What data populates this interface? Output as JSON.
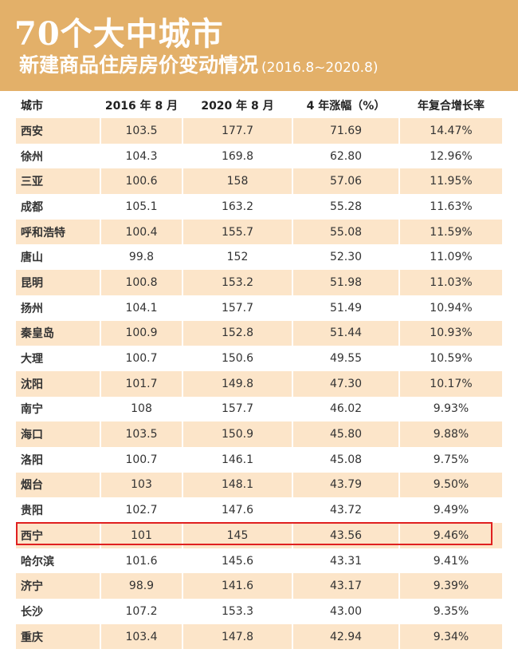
{
  "header": {
    "title": "70个大中城市",
    "subtitle": "新建商品住房房价变动情况",
    "range": "(2016.8~2020.8)"
  },
  "table": {
    "columns": [
      "城市",
      "2016 年 8 月",
      "2020 年 8 月",
      "4 年涨幅（%）",
      "年复合增长率"
    ],
    "rows": [
      [
        "西安",
        "103.5",
        "177.7",
        "71.69",
        "14.47%"
      ],
      [
        "徐州",
        "104.3",
        "169.8",
        "62.80",
        "12.96%"
      ],
      [
        "三亚",
        "100.6",
        "158",
        "57.06",
        "11.95%"
      ],
      [
        "成都",
        "105.1",
        "163.2",
        "55.28",
        "11.63%"
      ],
      [
        "呼和浩特",
        "100.4",
        "155.7",
        "55.08",
        "11.59%"
      ],
      [
        "唐山",
        "99.8",
        "152",
        "52.30",
        "11.09%"
      ],
      [
        "昆明",
        "100.8",
        "153.2",
        "51.98",
        "11.03%"
      ],
      [
        "扬州",
        "104.1",
        "157.7",
        "51.49",
        "10.94%"
      ],
      [
        "秦皇岛",
        "100.9",
        "152.8",
        "51.44",
        "10.93%"
      ],
      [
        "大理",
        "100.7",
        "150.6",
        "49.55",
        "10.59%"
      ],
      [
        "沈阳",
        "101.7",
        "149.8",
        "47.30",
        "10.17%"
      ],
      [
        "南宁",
        "108",
        "157.7",
        "46.02",
        "9.93%"
      ],
      [
        "海口",
        "103.5",
        "150.9",
        "45.80",
        "9.88%"
      ],
      [
        "洛阳",
        "100.7",
        "146.1",
        "45.08",
        "9.75%"
      ],
      [
        "烟台",
        "103",
        "148.1",
        "43.79",
        "9.50%"
      ],
      [
        "贵阳",
        "102.7",
        "147.6",
        "43.72",
        "9.49%"
      ],
      [
        "西宁",
        "101",
        "145",
        "43.56",
        "9.46%"
      ],
      [
        "哈尔滨",
        "101.6",
        "145.6",
        "43.31",
        "9.41%"
      ],
      [
        "济宁",
        "98.9",
        "141.6",
        "43.17",
        "9.39%"
      ],
      [
        "长沙",
        "107.2",
        "153.3",
        "43.00",
        "9.35%"
      ],
      [
        "重庆",
        "103.4",
        "147.8",
        "42.94",
        "9.34%"
      ]
    ],
    "highlighted_city": "西宁"
  },
  "colors": {
    "header_bg": "#e3b069",
    "row_shade": "#fce5c9",
    "highlight_border": "#e02020"
  }
}
